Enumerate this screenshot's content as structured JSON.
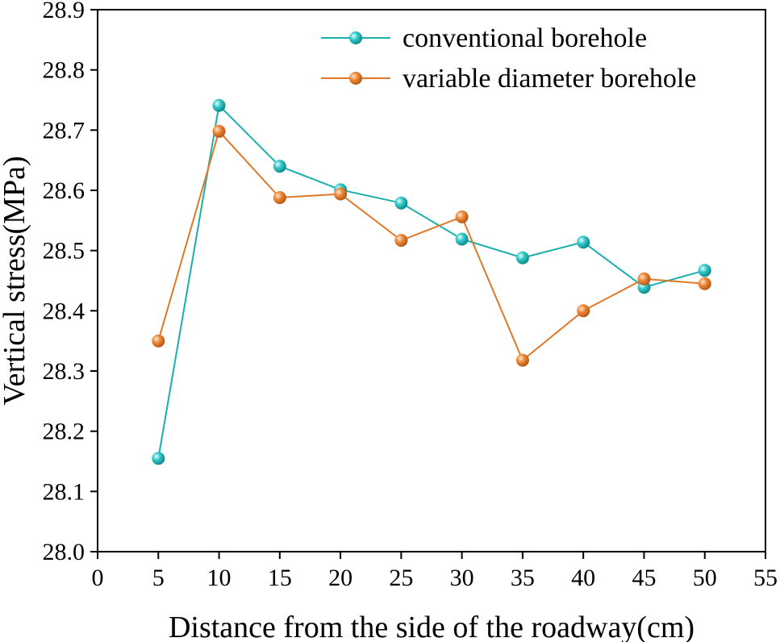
{
  "chart_data": {
    "type": "line",
    "title": "",
    "xlabel": "Distance from the side of the roadway(cm)",
    "ylabel": "Vertical stress(MPa)",
    "xlim": [
      0,
      55
    ],
    "ylim": [
      28.0,
      28.9
    ],
    "x_ticks": [
      0,
      5,
      10,
      15,
      20,
      25,
      30,
      35,
      40,
      45,
      50,
      55
    ],
    "y_ticks": [
      "28.0",
      "28.1",
      "28.2",
      "28.3",
      "28.4",
      "28.5",
      "28.6",
      "28.7",
      "28.8",
      "28.9"
    ],
    "x": [
      5,
      10,
      15,
      20,
      25,
      30,
      35,
      40,
      45,
      50
    ],
    "series": [
      {
        "name": "conventional borehole",
        "color": "#1aaeae",
        "marker_color": "#35c9c9",
        "values": [
          28.155,
          28.741,
          28.64,
          28.601,
          28.579,
          28.519,
          28.488,
          28.514,
          28.439,
          28.467
        ]
      },
      {
        "name": "variable diameter borehole",
        "color": "#e0782a",
        "marker_color": "#ee8a3a",
        "values": [
          28.35,
          28.698,
          28.588,
          28.594,
          28.517,
          28.556,
          28.318,
          28.4,
          28.453,
          28.445
        ]
      }
    ],
    "legend_position": "top-right",
    "grid": false
  }
}
